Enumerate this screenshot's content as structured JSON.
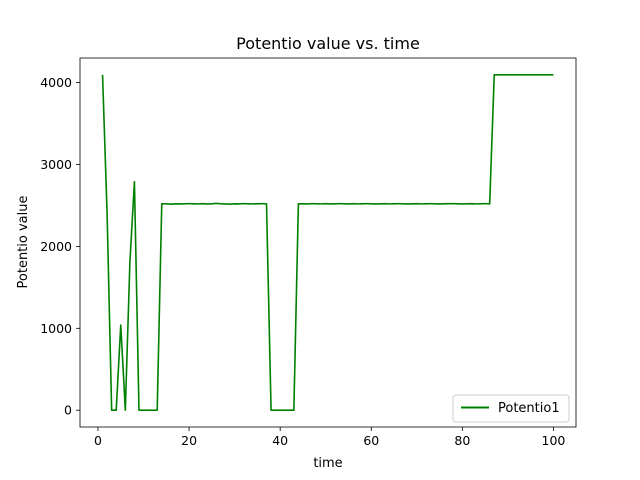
{
  "chart_data": {
    "type": "line",
    "title": "Potentio value vs. time",
    "xlabel": "time",
    "ylabel": "Potentio value",
    "xlim": [
      -3.95,
      104.95
    ],
    "ylim": [
      -205,
      4300
    ],
    "x_ticks": [
      0,
      20,
      40,
      60,
      80,
      100
    ],
    "x_tick_labels": [
      "0",
      "20",
      "40",
      "60",
      "80",
      "100"
    ],
    "y_ticks": [
      0,
      1000,
      2000,
      3000,
      4000
    ],
    "y_tick_labels": [
      "0",
      "1000",
      "2000",
      "3000",
      "4000"
    ],
    "grid": false,
    "legend_position": "lower right",
    "series": [
      {
        "name": "Potentio1",
        "color": "#008000",
        "x": [
          1,
          2,
          3,
          4,
          5,
          6,
          7,
          8,
          9,
          10,
          11,
          12,
          13,
          14,
          15,
          16,
          17,
          18,
          19,
          20,
          21,
          22,
          23,
          24,
          25,
          26,
          27,
          28,
          29,
          30,
          31,
          32,
          33,
          34,
          35,
          36,
          37,
          38,
          39,
          40,
          41,
          42,
          43,
          44,
          45,
          46,
          47,
          48,
          49,
          50,
          51,
          52,
          53,
          54,
          55,
          56,
          57,
          58,
          59,
          60,
          61,
          62,
          63,
          64,
          65,
          66,
          67,
          68,
          69,
          70,
          71,
          72,
          73,
          74,
          75,
          76,
          77,
          78,
          79,
          80,
          81,
          82,
          83,
          84,
          85,
          86,
          87,
          88,
          89,
          90,
          91,
          92,
          93,
          94,
          95,
          96,
          97,
          98,
          99,
          100
        ],
        "y": [
          4095,
          2400,
          0,
          0,
          1040,
          0,
          1800,
          2790,
          0,
          0,
          0,
          0,
          0,
          2520,
          2520,
          2515,
          2520,
          2518,
          2520,
          2522,
          2520,
          2519,
          2521,
          2518,
          2520,
          2525,
          2520,
          2518,
          2515,
          2520,
          2518,
          2522,
          2520,
          2519,
          2520,
          2522,
          2518,
          0,
          0,
          0,
          0,
          0,
          0,
          2520,
          2520,
          2518,
          2522,
          2520,
          2519,
          2521,
          2518,
          2520,
          2522,
          2520,
          2518,
          2521,
          2519,
          2520,
          2522,
          2520,
          2518,
          2520,
          2521,
          2519,
          2520,
          2522,
          2520,
          2518,
          2520,
          2521,
          2519,
          2520,
          2522,
          2520,
          2518,
          2520,
          2521,
          2522,
          2520,
          2518,
          2520,
          2521,
          2519,
          2520,
          2522,
          2520,
          4095,
          4095,
          4095,
          4095,
          4095,
          4095,
          4095,
          4095,
          4095,
          4095,
          4095,
          4095,
          4095,
          4095
        ]
      }
    ]
  }
}
